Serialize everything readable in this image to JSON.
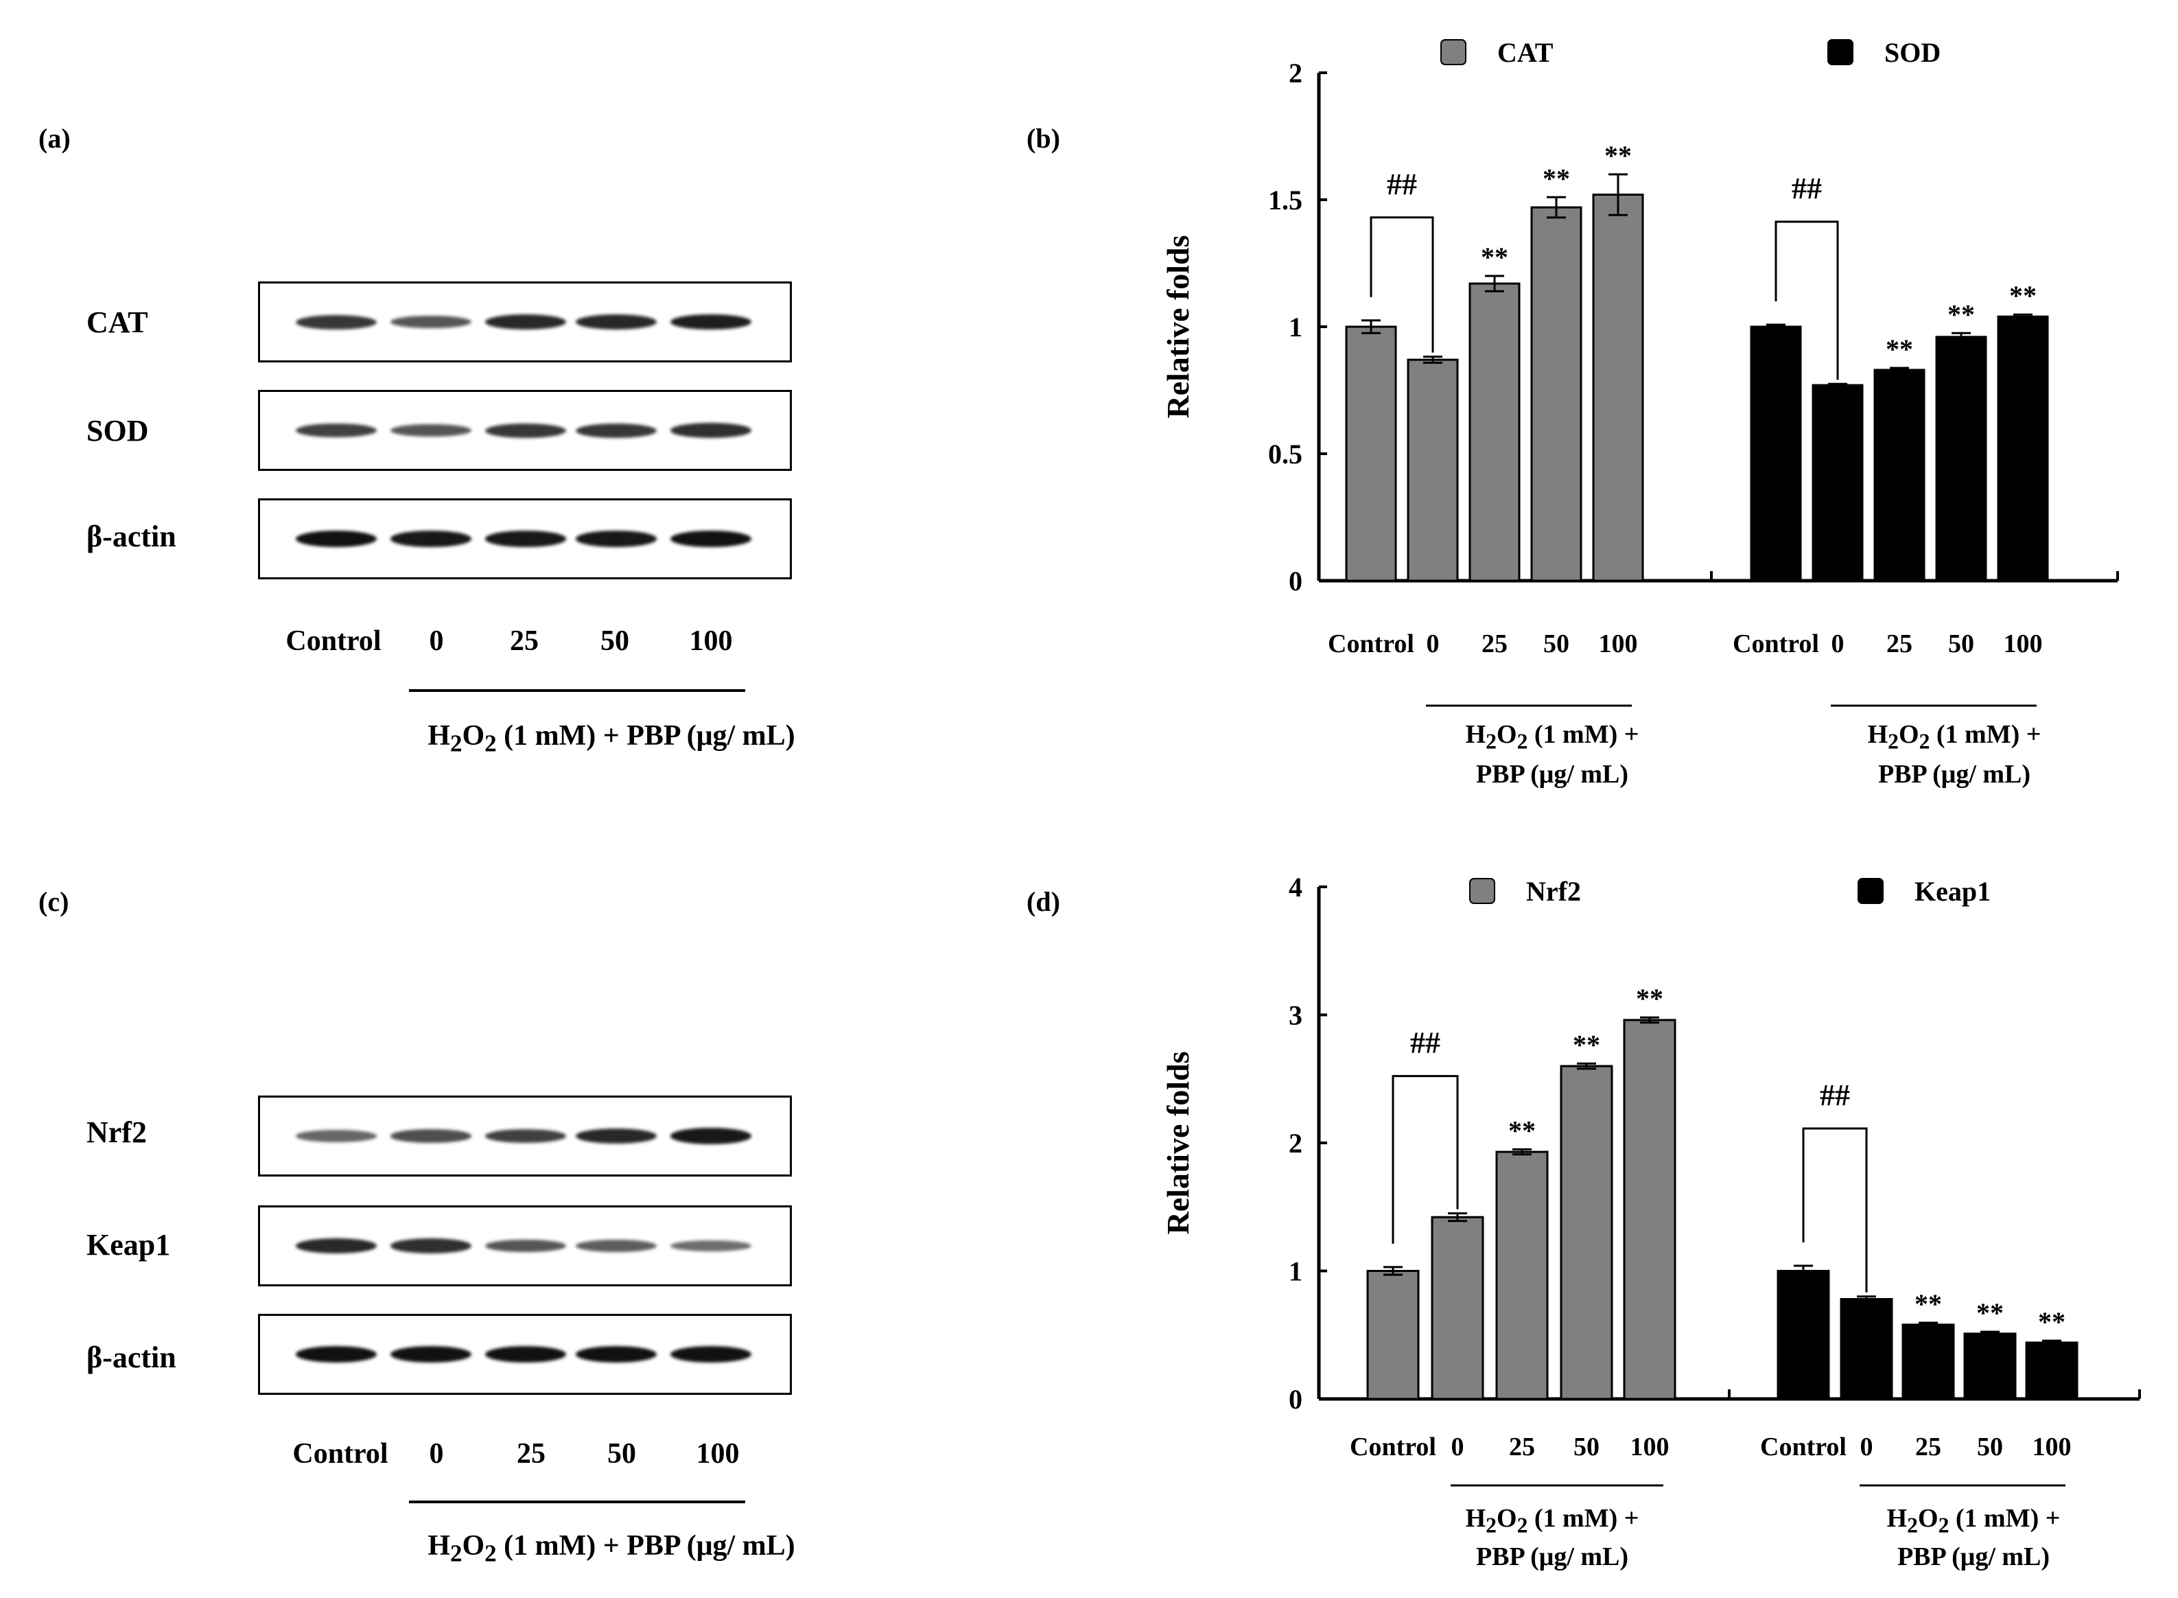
{
  "panels": {
    "a": {
      "label": "(a)",
      "rows": [
        {
          "name": "CAT",
          "intensity": [
            0.75,
            0.55,
            0.85,
            0.85,
            0.9
          ]
        },
        {
          "name": "SOD",
          "intensity": [
            0.7,
            0.55,
            0.75,
            0.75,
            0.8
          ]
        },
        {
          "name": "β-actin",
          "intensity": [
            1.0,
            0.95,
            0.95,
            0.95,
            1.0
          ]
        }
      ],
      "lanes": [
        "Control",
        "0",
        "25",
        "50",
        "100"
      ],
      "treatment_html": "H<sub>2</sub>O<sub>2</sub> (1 mM) + PBP (μg/ mL)"
    },
    "b": {
      "label": "(b)"
    },
    "c": {
      "label": "(c)",
      "rows": [
        {
          "name": "Nrf2",
          "intensity": [
            0.45,
            0.6,
            0.7,
            0.85,
            0.95
          ]
        },
        {
          "name": "Keap1",
          "intensity": [
            0.85,
            0.8,
            0.55,
            0.5,
            0.4
          ]
        },
        {
          "name": "β-actin",
          "intensity": [
            1.0,
            1.0,
            1.0,
            1.0,
            1.0
          ]
        }
      ],
      "lanes": [
        "Control",
        "0",
        "25",
        "50",
        "100"
      ],
      "treatment_html": "H<sub>2</sub>O<sub>2</sub> (1 mM) + PBP (μg/ mL)"
    },
    "d": {
      "label": "(d)"
    }
  },
  "chart_data": [
    {
      "panel": "b",
      "type": "bar",
      "ylabel": "Relative folds",
      "ylim": [
        0,
        2
      ],
      "yticks": [
        "0",
        "0.5",
        "1",
        "1.5",
        "2"
      ],
      "categories": [
        "Control",
        "0",
        "25",
        "50",
        "100"
      ],
      "treatment_line1_html": "H<sub>2</sub>O<sub>2</sub> (1 mM) +",
      "treatment_line2": "PBP (μg/ mL)",
      "series": [
        {
          "name": "CAT",
          "color": "#808080",
          "values": [
            1.0,
            0.87,
            1.17,
            1.47,
            1.52
          ],
          "errors": [
            0.025,
            0.012,
            0.03,
            0.04,
            0.08
          ],
          "annotations": [
            "",
            "",
            "**",
            "**",
            "**"
          ],
          "group_annotation": "##"
        },
        {
          "name": "SOD",
          "color": "#000000",
          "values": [
            1.0,
            0.77,
            0.83,
            0.96,
            1.04
          ],
          "errors": [
            0.008,
            0.005,
            0.008,
            0.015,
            0.008
          ],
          "annotations": [
            "",
            "",
            "**",
            "**",
            "**"
          ],
          "group_annotation": "##"
        }
      ]
    },
    {
      "panel": "d",
      "type": "bar",
      "ylabel": "Relative folds",
      "ylim": [
        0,
        4
      ],
      "yticks": [
        "0",
        "1",
        "2",
        "3",
        "4"
      ],
      "categories": [
        "Control",
        "0",
        "25",
        "50",
        "100"
      ],
      "treatment_line1_html": "H<sub>2</sub>O<sub>2</sub> (1 mM) +",
      "treatment_line2": "PBP (μg/ mL)",
      "series": [
        {
          "name": "Nrf2",
          "color": "#808080",
          "values": [
            1.0,
            1.42,
            1.93,
            2.6,
            2.96
          ],
          "errors": [
            0.03,
            0.03,
            0.02,
            0.02,
            0.02
          ],
          "annotations": [
            "",
            "",
            "**",
            "**",
            "**"
          ],
          "group_annotation": "##"
        },
        {
          "name": "Keap1",
          "color": "#000000",
          "values": [
            1.0,
            0.78,
            0.58,
            0.51,
            0.44
          ],
          "errors": [
            0.04,
            0.02,
            0.015,
            0.015,
            0.015
          ],
          "annotations": [
            "",
            "",
            "**",
            "**",
            "**"
          ],
          "group_annotation": "##"
        }
      ]
    }
  ]
}
